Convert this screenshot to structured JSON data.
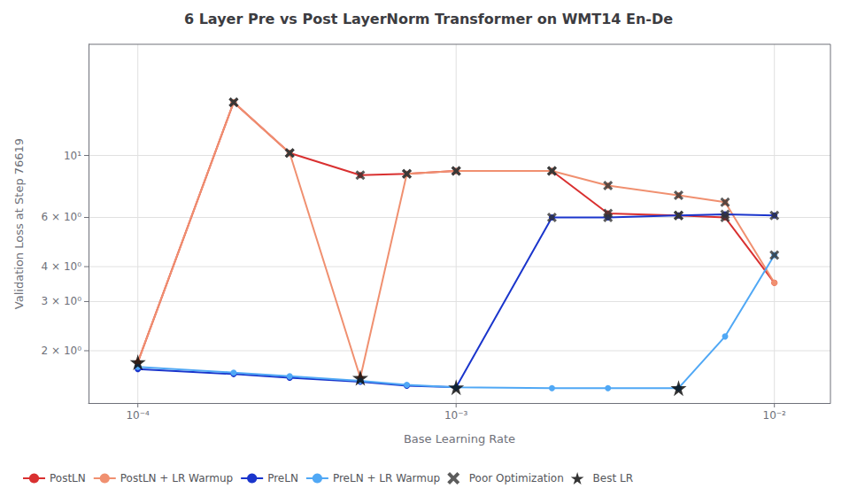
{
  "chart_data": {
    "type": "line",
    "title": "6 Layer Pre vs Post LayerNorm Transformer on WMT14 En-De",
    "xlabel": "Base Learning Rate",
    "ylabel": "Validation Loss at Step 76619",
    "log": true,
    "grid": true,
    "legend": "lower left",
    "x": [
      0.0001,
      0.0002,
      0.0003,
      0.0005,
      0.0007,
      0.001,
      0.002,
      0.003,
      0.005,
      0.007,
      0.01
    ],
    "xlim": [
      7e-05,
      0.015
    ],
    "ylim": [
      1.3,
      25
    ],
    "xticks": [
      {
        "value": 0.0001,
        "label": "10⁻⁴"
      },
      {
        "value": 0.001,
        "label": "10⁻³"
      },
      {
        "value": 0.01,
        "label": "10⁻²"
      }
    ],
    "yticks": [
      {
        "value": 2,
        "label": "2 × 10⁰"
      },
      {
        "value": 3,
        "label": "3 × 10⁰"
      },
      {
        "value": 4,
        "label": "4 × 10⁰"
      },
      {
        "value": 6,
        "label": "6 × 10⁰"
      },
      {
        "value": 10,
        "label": "10¹"
      }
    ],
    "series": [
      {
        "name": "PostLN",
        "type": "line",
        "marker": "circle",
        "color": "#d93030",
        "values": [
          1.82,
          15.5,
          10.2,
          8.5,
          8.6,
          8.8,
          8.8,
          6.2,
          6.1,
          6.0,
          3.5
        ]
      },
      {
        "name": "PostLN + LR Warmup",
        "type": "line",
        "marker": "circle",
        "color": "#f09070",
        "values": [
          1.82,
          15.5,
          10.2,
          1.6,
          8.6,
          8.8,
          8.8,
          7.8,
          7.2,
          6.8,
          3.5
        ]
      },
      {
        "name": "PreLN",
        "type": "line",
        "marker": "circle",
        "color": "#1a35cc",
        "values": [
          1.72,
          1.65,
          1.6,
          1.55,
          1.5,
          1.48,
          6.0,
          6.0,
          6.1,
          6.15,
          6.1
        ]
      },
      {
        "name": "PreLN + LR Warmup",
        "type": "line",
        "marker": "circle",
        "color": "#50a8f5",
        "values": [
          1.75,
          1.67,
          1.62,
          1.56,
          1.51,
          1.48,
          1.47,
          1.47,
          1.47,
          2.25,
          4.4
        ]
      },
      {
        "name": "Poor Optimization",
        "type": "scatter",
        "marker": "x",
        "color": "#333333",
        "x": [
          0.0002,
          0.0003,
          0.0005,
          0.0007,
          0.001,
          0.002,
          0.003,
          0.005,
          0.007,
          0.0002,
          0.0003,
          0.0007,
          0.001,
          0.002,
          0.003,
          0.005,
          0.007,
          0.002,
          0.003,
          0.005,
          0.007,
          0.01,
          0.01
        ],
        "values": [
          15.5,
          10.2,
          8.5,
          8.6,
          8.8,
          8.8,
          6.2,
          6.1,
          6.0,
          15.5,
          10.2,
          8.6,
          8.8,
          8.8,
          7.8,
          7.2,
          6.8,
          6.0,
          6.0,
          6.1,
          6.15,
          6.1,
          4.4
        ]
      },
      {
        "name": "Best LR",
        "type": "scatter",
        "marker": "star",
        "color": "#000000",
        "x": [
          0.0001,
          0.0005,
          0.001,
          0.005
        ],
        "values": [
          1.82,
          1.6,
          1.48,
          1.47
        ]
      }
    ]
  }
}
